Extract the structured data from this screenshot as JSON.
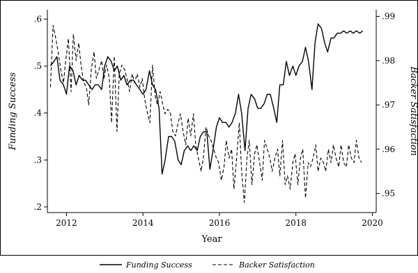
{
  "chart_data": {
    "type": "line",
    "xlabel": "Year",
    "ylabel_left": "Funding Success",
    "ylabel_right": "Backer Satisfaction",
    "xlim": [
      2011.5,
      2020.1
    ],
    "ylim_left": [
      0.188,
      0.62
    ],
    "ylim_right": [
      0.9457,
      0.9915
    ],
    "x_ticks": [
      2012,
      2014,
      2016,
      2018,
      2020
    ],
    "x_tick_labels": [
      "2012",
      "2014",
      "2016",
      "2018",
      "2020"
    ],
    "y_left_ticks": [
      0.2,
      0.3,
      0.4,
      0.5,
      0.6
    ],
    "y_left_tick_labels": [
      ".2",
      ".3",
      ".4",
      ".5",
      ".6"
    ],
    "y_right_ticks": [
      0.95,
      0.96,
      0.97,
      0.98,
      0.99
    ],
    "y_right_tick_labels": [
      ".95",
      ".96",
      ".97",
      ".98",
      ".99"
    ],
    "grid": false,
    "legend": {
      "position": "bottom",
      "items": [
        {
          "label": "Funding Success",
          "style": "solid"
        },
        {
          "label": "Backer Satisfaction",
          "style": "dashed"
        }
      ]
    },
    "series": [
      {
        "name": "Funding Success",
        "axis": "left",
        "x": [
          2011.58,
          2011.67,
          2011.75,
          2011.83,
          2011.92,
          2012.0,
          2012.08,
          2012.17,
          2012.25,
          2012.33,
          2012.42,
          2012.5,
          2012.58,
          2012.67,
          2012.75,
          2012.83,
          2012.92,
          2013.0,
          2013.08,
          2013.17,
          2013.25,
          2013.33,
          2013.42,
          2013.5,
          2013.58,
          2013.67,
          2013.75,
          2013.83,
          2013.92,
          2014.0,
          2014.08,
          2014.17,
          2014.25,
          2014.33,
          2014.42,
          2014.5,
          2014.58,
          2014.67,
          2014.75,
          2014.83,
          2014.92,
          2015.0,
          2015.08,
          2015.17,
          2015.25,
          2015.33,
          2015.42,
          2015.5,
          2015.58,
          2015.67,
          2015.75,
          2015.83,
          2015.92,
          2016.0,
          2016.08,
          2016.17,
          2016.25,
          2016.33,
          2016.42,
          2016.5,
          2016.58,
          2016.67,
          2016.75,
          2016.83,
          2016.92,
          2017.0,
          2017.08,
          2017.17,
          2017.25,
          2017.33,
          2017.42,
          2017.5,
          2017.58,
          2017.67,
          2017.75,
          2017.83,
          2017.92,
          2018.0,
          2018.08,
          2018.17,
          2018.25,
          2018.33,
          2018.42,
          2018.5,
          2018.58,
          2018.67,
          2018.75,
          2018.83,
          2018.92,
          2019.0,
          2019.08,
          2019.17,
          2019.25,
          2019.33,
          2019.42,
          2019.5,
          2019.58,
          2019.67,
          2019.75
        ],
        "values": [
          0.5,
          0.51,
          0.52,
          0.47,
          0.46,
          0.44,
          0.5,
          0.49,
          0.46,
          0.48,
          0.47,
          0.47,
          0.46,
          0.45,
          0.46,
          0.46,
          0.45,
          0.5,
          0.52,
          0.51,
          0.49,
          0.5,
          0.47,
          0.48,
          0.46,
          0.47,
          0.47,
          0.46,
          0.45,
          0.44,
          0.45,
          0.49,
          0.46,
          0.45,
          0.41,
          0.27,
          0.3,
          0.35,
          0.35,
          0.34,
          0.3,
          0.29,
          0.32,
          0.33,
          0.32,
          0.33,
          0.32,
          0.35,
          0.36,
          0.36,
          0.28,
          0.32,
          0.37,
          0.39,
          0.38,
          0.38,
          0.37,
          0.38,
          0.4,
          0.44,
          0.4,
          0.32,
          0.41,
          0.44,
          0.43,
          0.41,
          0.41,
          0.42,
          0.44,
          0.44,
          0.41,
          0.38,
          0.46,
          0.46,
          0.51,
          0.48,
          0.5,
          0.48,
          0.5,
          0.51,
          0.54,
          0.51,
          0.45,
          0.55,
          0.59,
          0.58,
          0.55,
          0.53,
          0.56,
          0.56,
          0.57,
          0.57,
          0.575,
          0.57,
          0.575,
          0.57,
          0.575,
          0.57,
          0.575
        ]
      },
      {
        "name": "Backer Satisfaction",
        "axis": "right",
        "x": [
          2011.58,
          2011.65,
          2011.72,
          2011.78,
          2011.85,
          2011.92,
          2011.98,
          2012.05,
          2012.12,
          2012.18,
          2012.25,
          2012.32,
          2012.38,
          2012.45,
          2012.52,
          2012.58,
          2012.65,
          2012.72,
          2012.78,
          2012.85,
          2012.92,
          2012.98,
          2013.05,
          2013.12,
          2013.18,
          2013.25,
          2013.32,
          2013.38,
          2013.45,
          2013.52,
          2013.58,
          2013.65,
          2013.72,
          2013.78,
          2013.85,
          2013.92,
          2013.98,
          2014.05,
          2014.12,
          2014.18,
          2014.25,
          2014.32,
          2014.38,
          2014.45,
          2014.52,
          2014.58,
          2014.65,
          2014.72,
          2014.78,
          2014.85,
          2014.92,
          2014.98,
          2015.05,
          2015.12,
          2015.18,
          2015.25,
          2015.32,
          2015.38,
          2015.45,
          2015.52,
          2015.58,
          2015.65,
          2015.72,
          2015.78,
          2015.85,
          2015.92,
          2015.98,
          2016.05,
          2016.12,
          2016.18,
          2016.25,
          2016.32,
          2016.38,
          2016.45,
          2016.52,
          2016.58,
          2016.65,
          2016.72,
          2016.78,
          2016.85,
          2016.92,
          2016.98,
          2017.05,
          2017.12,
          2017.18,
          2017.25,
          2017.32,
          2017.38,
          2017.45,
          2017.52,
          2017.58,
          2017.65,
          2017.72,
          2017.78,
          2017.85,
          2017.92,
          2017.98,
          2018.05,
          2018.12,
          2018.18,
          2018.25,
          2018.32,
          2018.38,
          2018.45,
          2018.52,
          2018.58,
          2018.65,
          2018.72,
          2018.78,
          2018.85,
          2018.92,
          2018.98,
          2019.05,
          2019.12,
          2019.18,
          2019.25,
          2019.32,
          2019.38,
          2019.45,
          2019.52,
          2019.58,
          2019.65,
          2019.72
        ],
        "values": [
          0.974,
          0.988,
          0.985,
          0.982,
          0.978,
          0.975,
          0.98,
          0.985,
          0.973,
          0.986,
          0.98,
          0.984,
          0.979,
          0.975,
          0.974,
          0.97,
          0.978,
          0.982,
          0.976,
          0.978,
          0.98,
          0.976,
          0.979,
          0.976,
          0.966,
          0.981,
          0.964,
          0.977,
          0.979,
          0.978,
          0.976,
          0.973,
          0.977,
          0.975,
          0.977,
          0.974,
          0.976,
          0.971,
          0.968,
          0.966,
          0.979,
          0.972,
          0.97,
          0.973,
          0.97,
          0.968,
          0.969,
          0.968,
          0.964,
          0.963,
          0.966,
          0.968,
          0.964,
          0.961,
          0.967,
          0.963,
          0.968,
          0.961,
          0.958,
          0.955,
          0.958,
          0.965,
          0.963,
          0.962,
          0.96,
          0.958,
          0.957,
          0.953,
          0.956,
          0.962,
          0.958,
          0.96,
          0.951,
          0.958,
          0.966,
          0.955,
          0.948,
          0.958,
          0.962,
          0.952,
          0.959,
          0.961,
          0.957,
          0.953,
          0.962,
          0.96,
          0.958,
          0.955,
          0.958,
          0.96,
          0.954,
          0.962,
          0.952,
          0.954,
          0.951,
          0.957,
          0.959,
          0.952,
          0.958,
          0.96,
          0.949,
          0.957,
          0.956,
          0.958,
          0.961,
          0.955,
          0.958,
          0.957,
          0.955,
          0.96,
          0.957,
          0.961,
          0.958,
          0.956,
          0.961,
          0.957,
          0.956,
          0.961,
          0.958,
          0.957,
          0.962,
          0.958,
          0.957
        ]
      }
    ]
  }
}
